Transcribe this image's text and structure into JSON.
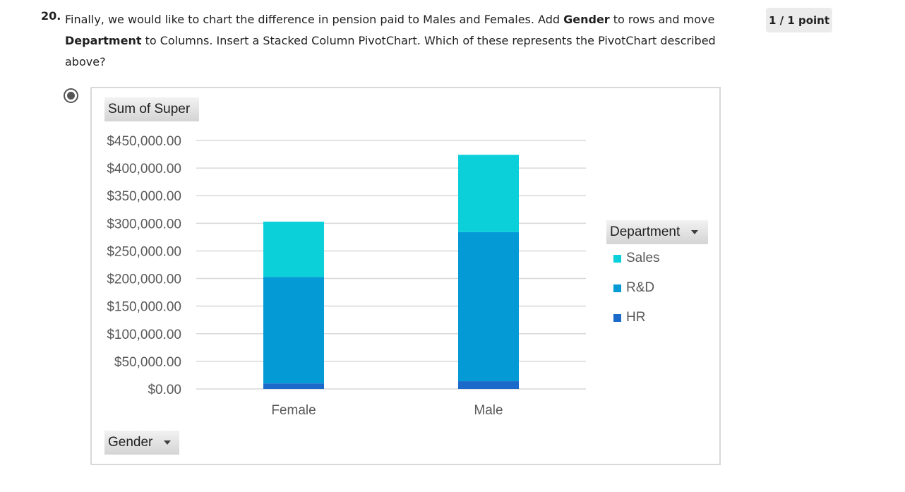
{
  "question": {
    "number": "20.",
    "text_1": "Finally, we would like to chart the difference in pension paid to Males and Females. Add ",
    "bold_1": "Gender",
    "text_2": " to rows and move ",
    "bold_2": "Department",
    "text_3": " to Columns. Insert a Stacked Column PivotChart. Which of these represents the PivotChart described above?",
    "score": "1 / 1 point"
  },
  "option": {
    "selected": true
  },
  "chart_buttons": {
    "values_field": "Sum of Super",
    "legend_field": "Department",
    "axis_field": "Gender"
  },
  "chart_data": {
    "type": "bar",
    "stacked": true,
    "categories": [
      "Female",
      "Male"
    ],
    "series": [
      {
        "name": "HR",
        "values": [
          10000,
          14000
        ],
        "color": "#1b6ac9"
      },
      {
        "name": "R&D",
        "values": [
          193000,
          270000
        ],
        "color": "#039ad6"
      },
      {
        "name": "Sales",
        "values": [
          100000,
          140000
        ],
        "color": "#0bd0d9"
      }
    ],
    "legend_order": [
      "Sales",
      "R&D",
      "HR"
    ],
    "ylim": [
      0,
      450000
    ],
    "y_ticks": [
      "$0.00",
      "$50,000.00",
      "$100,000.00",
      "$150,000.00",
      "$200,000.00",
      "$250,000.00",
      "$300,000.00",
      "$350,000.00",
      "$400,000.00",
      "$450,000.00"
    ],
    "y_tick_values": [
      0,
      50000,
      100000,
      150000,
      200000,
      250000,
      300000,
      350000,
      400000,
      450000
    ],
    "grid": true,
    "legend_placement": "right"
  }
}
